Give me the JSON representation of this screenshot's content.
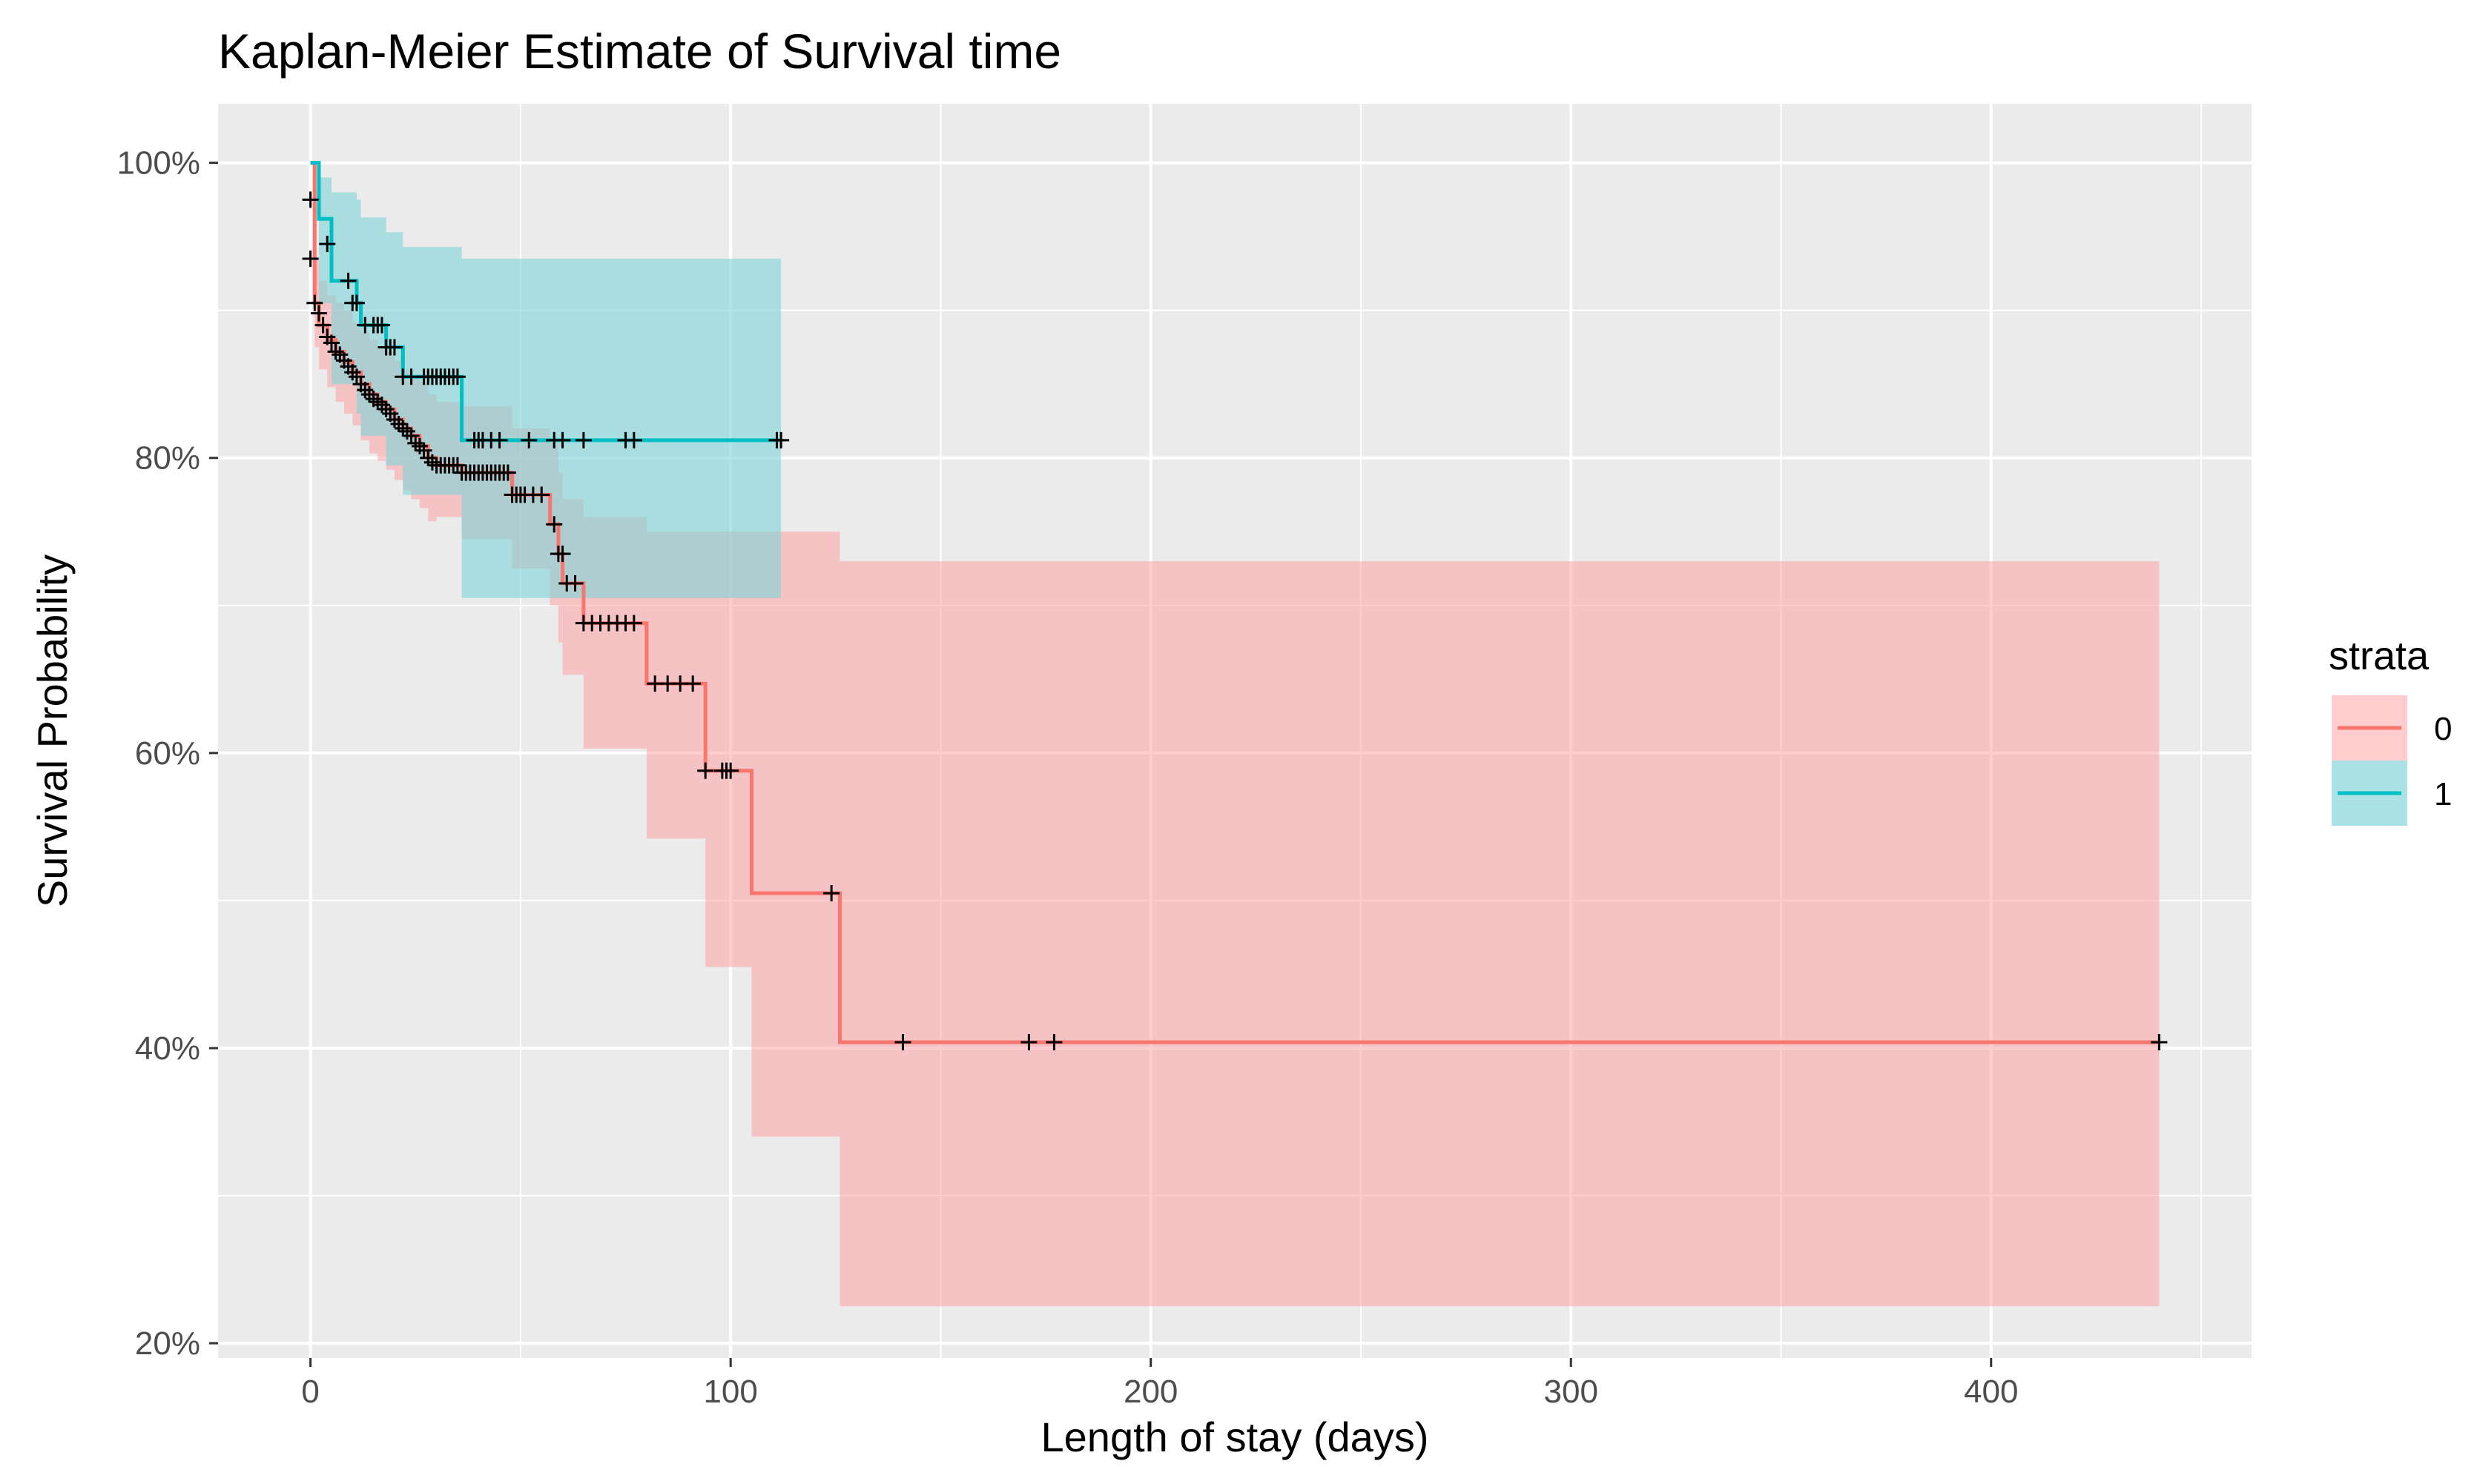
{
  "chart_data": {
    "type": "line",
    "subtype": "kaplan-meier step survival curve with confidence bands",
    "title": "Kaplan-Meier Estimate of Survival time",
    "xlabel": "Length of stay (days)",
    "ylabel": "Survival Probability",
    "xlim": [
      -22,
      462
    ],
    "ylim": [
      0.19,
      1.04
    ],
    "xticks": [
      0,
      100,
      200,
      300,
      400
    ],
    "xtick_labels": [
      "0",
      "100",
      "200",
      "300",
      "400"
    ],
    "yticks": [
      0.2,
      0.4,
      0.6,
      0.8,
      1.0
    ],
    "ytick_labels": [
      "20%",
      "40%",
      "60%",
      "80%",
      "100%"
    ],
    "grid": true,
    "legend": {
      "title": "strata",
      "position": "right"
    },
    "series": [
      {
        "name": "0",
        "color": "#F8766D",
        "fill": "#FF9C9C",
        "steps": [
          {
            "x": 0,
            "y": 1.0,
            "lo": 1.0,
            "hi": 1.0
          },
          {
            "x": 1,
            "y": 0.905,
            "lo": 0.875,
            "hi": 0.935
          },
          {
            "x": 2,
            "y": 0.89,
            "lo": 0.86,
            "hi": 0.92
          },
          {
            "x": 4,
            "y": 0.88,
            "lo": 0.848,
            "hi": 0.91
          },
          {
            "x": 6,
            "y": 0.872,
            "lo": 0.838,
            "hi": 0.905
          },
          {
            "x": 8,
            "y": 0.865,
            "lo": 0.83,
            "hi": 0.9
          },
          {
            "x": 10,
            "y": 0.858,
            "lo": 0.822,
            "hi": 0.892
          },
          {
            "x": 12,
            "y": 0.85,
            "lo": 0.812,
            "hi": 0.885
          },
          {
            "x": 14,
            "y": 0.843,
            "lo": 0.803,
            "hi": 0.88
          },
          {
            "x": 16,
            "y": 0.838,
            "lo": 0.798,
            "hi": 0.875
          },
          {
            "x": 18,
            "y": 0.833,
            "lo": 0.792,
            "hi": 0.872
          },
          {
            "x": 20,
            "y": 0.826,
            "lo": 0.785,
            "hi": 0.866
          },
          {
            "x": 22,
            "y": 0.82,
            "lo": 0.778,
            "hi": 0.86
          },
          {
            "x": 24,
            "y": 0.815,
            "lo": 0.772,
            "hi": 0.856
          },
          {
            "x": 26,
            "y": 0.808,
            "lo": 0.766,
            "hi": 0.852
          },
          {
            "x": 28,
            "y": 0.8,
            "lo": 0.757,
            "hi": 0.843
          },
          {
            "x": 30,
            "y": 0.795,
            "lo": 0.76,
            "hi": 0.838
          },
          {
            "x": 36,
            "y": 0.79,
            "lo": 0.745,
            "hi": 0.835
          },
          {
            "x": 48,
            "y": 0.775,
            "lo": 0.725,
            "hi": 0.82
          },
          {
            "x": 57,
            "y": 0.755,
            "lo": 0.7,
            "hi": 0.81
          },
          {
            "x": 59,
            "y": 0.735,
            "lo": 0.675,
            "hi": 0.79
          },
          {
            "x": 60,
            "y": 0.715,
            "lo": 0.653,
            "hi": 0.772
          },
          {
            "x": 65,
            "y": 0.688,
            "lo": 0.603,
            "hi": 0.76
          },
          {
            "x": 80,
            "y": 0.647,
            "lo": 0.542,
            "hi": 0.75
          },
          {
            "x": 94,
            "y": 0.588,
            "lo": 0.455,
            "hi": 0.75
          },
          {
            "x": 105,
            "y": 0.505,
            "lo": 0.34,
            "hi": 0.75
          },
          {
            "x": 126,
            "y": 0.404,
            "lo": 0.225,
            "hi": 0.73
          }
        ],
        "end_x": 440,
        "censored": [
          [
            0,
            0.975
          ],
          [
            0,
            0.935
          ],
          [
            1,
            0.905
          ],
          [
            2,
            0.898
          ],
          [
            3,
            0.89
          ],
          [
            4,
            0.882
          ],
          [
            5,
            0.878
          ],
          [
            6,
            0.872
          ],
          [
            7,
            0.87
          ],
          [
            8,
            0.866
          ],
          [
            9,
            0.862
          ],
          [
            10,
            0.858
          ],
          [
            11,
            0.855
          ],
          [
            12,
            0.85
          ],
          [
            13,
            0.846
          ],
          [
            14,
            0.843
          ],
          [
            15,
            0.84
          ],
          [
            16,
            0.838
          ],
          [
            17,
            0.836
          ],
          [
            18,
            0.833
          ],
          [
            19,
            0.83
          ],
          [
            20,
            0.826
          ],
          [
            21,
            0.823
          ],
          [
            22,
            0.82
          ],
          [
            23,
            0.818
          ],
          [
            24,
            0.815
          ],
          [
            25,
            0.81
          ],
          [
            26,
            0.808
          ],
          [
            27,
            0.805
          ],
          [
            28,
            0.8
          ],
          [
            29,
            0.797
          ],
          [
            30,
            0.795
          ],
          [
            31,
            0.795
          ],
          [
            32,
            0.795
          ],
          [
            33,
            0.795
          ],
          [
            34,
            0.795
          ],
          [
            35,
            0.795
          ],
          [
            36,
            0.79
          ],
          [
            37,
            0.79
          ],
          [
            38,
            0.79
          ],
          [
            39,
            0.79
          ],
          [
            40,
            0.79
          ],
          [
            41,
            0.79
          ],
          [
            42,
            0.79
          ],
          [
            43,
            0.79
          ],
          [
            44,
            0.79
          ],
          [
            45,
            0.79
          ],
          [
            46,
            0.79
          ],
          [
            47,
            0.79
          ],
          [
            48,
            0.775
          ],
          [
            49,
            0.775
          ],
          [
            50,
            0.775
          ],
          [
            51,
            0.775
          ],
          [
            53,
            0.775
          ],
          [
            55,
            0.775
          ],
          [
            58,
            0.755
          ],
          [
            59,
            0.735
          ],
          [
            60,
            0.735
          ],
          [
            61,
            0.715
          ],
          [
            63,
            0.715
          ],
          [
            65,
            0.688
          ],
          [
            67,
            0.688
          ],
          [
            69,
            0.688
          ],
          [
            71,
            0.688
          ],
          [
            73,
            0.688
          ],
          [
            75,
            0.688
          ],
          [
            77,
            0.688
          ],
          [
            82,
            0.647
          ],
          [
            85,
            0.647
          ],
          [
            88,
            0.647
          ],
          [
            91,
            0.647
          ],
          [
            94,
            0.588
          ],
          [
            98,
            0.588
          ],
          [
            99,
            0.588
          ],
          [
            100,
            0.588
          ],
          [
            124,
            0.505
          ],
          [
            141,
            0.404
          ],
          [
            171,
            0.404
          ],
          [
            177,
            0.404
          ],
          [
            440,
            0.404
          ]
        ]
      },
      {
        "name": "1",
        "color": "#00BFC4",
        "fill": "#7DD3D8",
        "steps": [
          {
            "x": 0,
            "y": 1.0,
            "lo": 1.0,
            "hi": 1.0
          },
          {
            "x": 2,
            "y": 0.962,
            "lo": 0.905,
            "hi": 0.99
          },
          {
            "x": 5,
            "y": 0.92,
            "lo": 0.85,
            "hi": 0.98
          },
          {
            "x": 11,
            "y": 0.905,
            "lo": 0.83,
            "hi": 0.975
          },
          {
            "x": 12,
            "y": 0.89,
            "lo": 0.815,
            "hi": 0.963
          },
          {
            "x": 18,
            "y": 0.875,
            "lo": 0.795,
            "hi": 0.953
          },
          {
            "x": 22,
            "y": 0.855,
            "lo": 0.775,
            "hi": 0.943
          },
          {
            "x": 36,
            "y": 0.812,
            "lo": 0.705,
            "hi": 0.935
          }
        ],
        "end_x": 112,
        "censored": [
          [
            4,
            0.945
          ],
          [
            9,
            0.92
          ],
          [
            10,
            0.905
          ],
          [
            11,
            0.905
          ],
          [
            13,
            0.89
          ],
          [
            15,
            0.89
          ],
          [
            16,
            0.89
          ],
          [
            17,
            0.89
          ],
          [
            18,
            0.875
          ],
          [
            19,
            0.875
          ],
          [
            20,
            0.875
          ],
          [
            22,
            0.855
          ],
          [
            24,
            0.855
          ],
          [
            27,
            0.855
          ],
          [
            28,
            0.855
          ],
          [
            29,
            0.855
          ],
          [
            30,
            0.855
          ],
          [
            31,
            0.855
          ],
          [
            32,
            0.855
          ],
          [
            33,
            0.855
          ],
          [
            34,
            0.855
          ],
          [
            35,
            0.855
          ],
          [
            39,
            0.812
          ],
          [
            40,
            0.812
          ],
          [
            41,
            0.812
          ],
          [
            43,
            0.812
          ],
          [
            45,
            0.812
          ],
          [
            52,
            0.812
          ],
          [
            58,
            0.812
          ],
          [
            60,
            0.812
          ],
          [
            65,
            0.812
          ],
          [
            75,
            0.812
          ],
          [
            77,
            0.812
          ],
          [
            111,
            0.812
          ],
          [
            112,
            0.812
          ]
        ]
      }
    ]
  }
}
